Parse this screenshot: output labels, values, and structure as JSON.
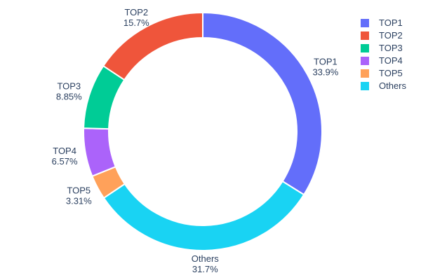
{
  "chart_data": {
    "type": "pie",
    "title": "",
    "hole": 0.79,
    "background": "#ffffff",
    "text_color": "#2a3f5f",
    "slice_gap_color": "#ffffff",
    "legend_position": "right",
    "start_at_top": true,
    "clockwise_order": [
      "TOP1",
      "Others",
      "TOP5",
      "TOP4",
      "TOP3",
      "TOP2"
    ],
    "slices": [
      {
        "label": "TOP1",
        "percent": 33.9,
        "percent_label": "33.9%",
        "color": "#636EFA"
      },
      {
        "label": "TOP2",
        "percent": 15.7,
        "percent_label": "15.7%",
        "color": "#EF553B"
      },
      {
        "label": "TOP3",
        "percent": 8.85,
        "percent_label": "8.85%",
        "color": "#00CC96"
      },
      {
        "label": "TOP4",
        "percent": 6.57,
        "percent_label": "6.57%",
        "color": "#AB63FA"
      },
      {
        "label": "TOP5",
        "percent": 3.31,
        "percent_label": "3.31%",
        "color": "#FFA15A"
      },
      {
        "label": "Others",
        "percent": 31.7,
        "percent_label": "31.7%",
        "color": "#19D3F3"
      }
    ]
  }
}
